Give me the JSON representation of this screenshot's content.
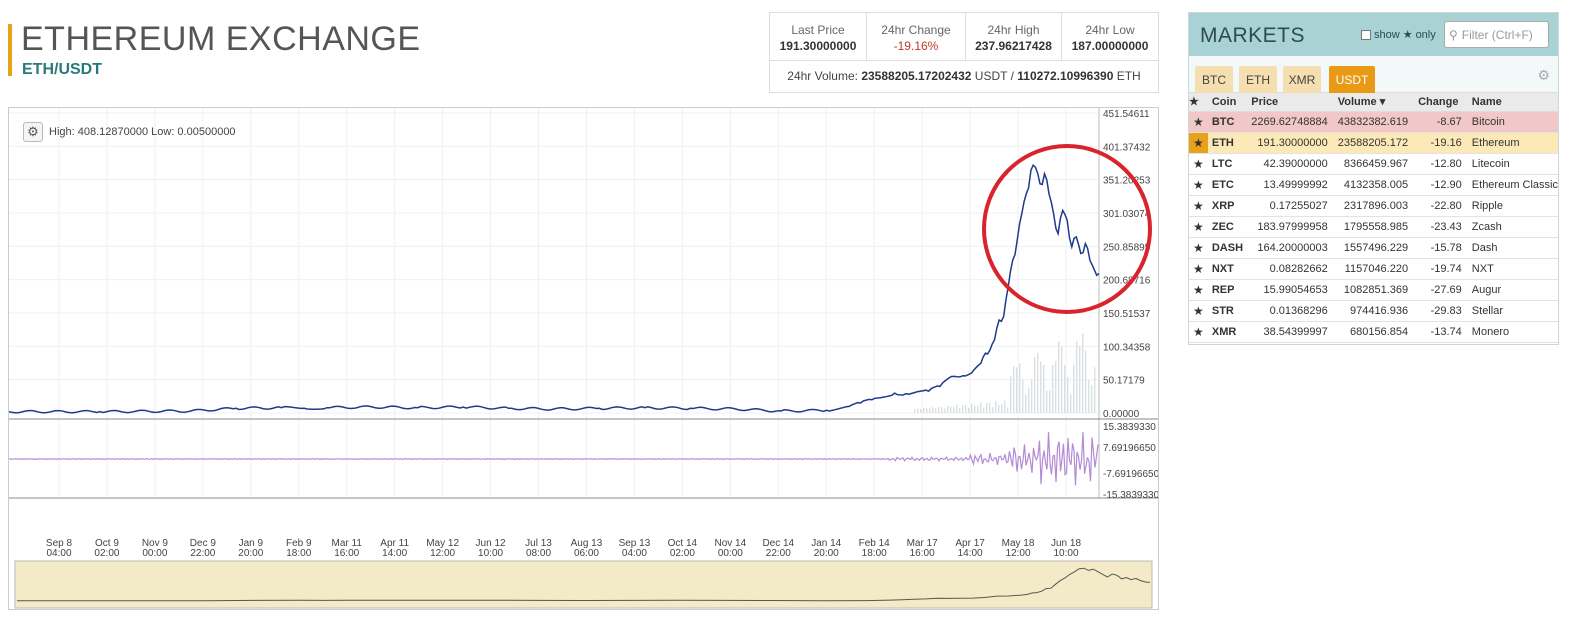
{
  "header": {
    "title": "ETHEREUM EXCHANGE",
    "pair": "ETH/USDT"
  },
  "stats": {
    "last_price_label": "Last Price",
    "last_price": "191.30000000",
    "change_label": "24hr Change",
    "change": "-19.16%",
    "high_label": "24hr High",
    "high": "237.96217428",
    "low_label": "24hr Low",
    "low": "187.00000000",
    "volume_label": "24hr Volume:",
    "volume_usdt": "23588205.17202432",
    "usdt_unit": "USDT /",
    "volume_eth": "110272.10996390",
    "eth_unit": "ETH"
  },
  "chart": {
    "high_low": "High: 408.12870000  Low: 0.00500000",
    "price_ticks": [
      "451.54611",
      "401.37432",
      "351.20253",
      "301.03074",
      "250.85895",
      "200.68716",
      "150.51537",
      "100.34358",
      "50.17179",
      "0.00000"
    ],
    "osc_ticks": [
      "15.3839330",
      "7.69196650",
      "-7.69196650",
      "-15.3839330"
    ],
    "x_labels": [
      [
        "Sep 8",
        "04:00"
      ],
      [
        "Oct 9",
        "02:00"
      ],
      [
        "Nov 9",
        "00:00"
      ],
      [
        "Dec 9",
        "22:00"
      ],
      [
        "Jan 9",
        "20:00"
      ],
      [
        "Feb 9",
        "18:00"
      ],
      [
        "Mar 11",
        "16:00"
      ],
      [
        "Apr 11",
        "14:00"
      ],
      [
        "May 12",
        "12:00"
      ],
      [
        "Jun 12",
        "10:00"
      ],
      [
        "Jul 13",
        "08:00"
      ],
      [
        "Aug 13",
        "06:00"
      ],
      [
        "Sep 13",
        "04:00"
      ],
      [
        "Oct 14",
        "02:00"
      ],
      [
        "Nov 14",
        "00:00"
      ],
      [
        "Dec 14",
        "22:00"
      ],
      [
        "Jan 14",
        "20:00"
      ],
      [
        "Feb 14",
        "18:00"
      ],
      [
        "Mar 17",
        "16:00"
      ],
      [
        "Apr 17",
        "14:00"
      ],
      [
        "May 18",
        "12:00"
      ],
      [
        "Jun 18",
        "10:00"
      ]
    ],
    "colors": {
      "price_line": "#1f3a8a",
      "oscillator": "#b48ad6",
      "annotation_circle": "#d9232d",
      "navigator_fill": "#f3ebc7"
    },
    "price_series": [
      [
        0,
        2
      ],
      [
        4,
        2
      ],
      [
        8,
        3
      ],
      [
        10,
        7
      ],
      [
        12,
        8
      ],
      [
        13,
        7
      ],
      [
        14,
        8
      ],
      [
        16,
        9
      ],
      [
        18,
        8
      ],
      [
        20,
        9
      ],
      [
        22,
        7
      ],
      [
        24,
        6
      ],
      [
        26,
        7
      ],
      [
        28,
        8
      ],
      [
        30,
        7
      ],
      [
        32,
        6
      ],
      [
        34,
        3
      ],
      [
        36,
        4
      ],
      [
        37,
        10
      ],
      [
        37.5,
        15
      ],
      [
        38,
        20
      ],
      [
        38.5,
        24
      ],
      [
        39,
        30
      ],
      [
        39.5,
        29
      ],
      [
        40,
        32
      ],
      [
        40.5,
        33
      ],
      [
        41,
        40
      ],
      [
        41.5,
        55
      ],
      [
        42,
        56
      ],
      [
        42.5,
        65
      ],
      [
        42.8,
        75
      ],
      [
        43,
        90
      ],
      [
        43.2,
        95
      ],
      [
        43.4,
        110
      ],
      [
        43.6,
        140
      ],
      [
        43.8,
        145
      ],
      [
        44,
        190
      ],
      [
        44.2,
        230
      ],
      [
        44.4,
        260
      ],
      [
        44.6,
        300
      ],
      [
        44.8,
        330
      ],
      [
        45,
        365
      ],
      [
        45.2,
        370
      ],
      [
        45.4,
        345
      ],
      [
        45.6,
        360
      ],
      [
        45.8,
        330
      ],
      [
        46,
        300
      ],
      [
        46.2,
        270
      ],
      [
        46.4,
        305
      ],
      [
        46.6,
        290
      ],
      [
        46.8,
        250
      ],
      [
        47,
        265
      ],
      [
        47.2,
        240
      ],
      [
        47.4,
        255
      ],
      [
        47.6,
        230
      ],
      [
        47.8,
        215
      ],
      [
        48,
        210
      ]
    ]
  },
  "markets": {
    "title": "MARKETS",
    "show_only": "show",
    "only": "only",
    "filter_placeholder": "Filter (Ctrl+F)",
    "tabs": [
      "BTC",
      "ETH",
      "XMR",
      "USDT"
    ],
    "active_tab": "USDT",
    "columns": [
      "Coin",
      "Price",
      "Volume",
      "Change",
      "Name"
    ],
    "rows": [
      {
        "coin": "BTC",
        "price": "2269.62748884",
        "volume": "43832382.619",
        "change": "-8.67",
        "name": "Bitcoin"
      },
      {
        "coin": "ETH",
        "price": "191.30000000",
        "volume": "23588205.172",
        "change": "-19.16",
        "name": "Ethereum"
      },
      {
        "coin": "LTC",
        "price": "42.39000000",
        "volume": "8366459.967",
        "change": "-12.80",
        "name": "Litecoin"
      },
      {
        "coin": "ETC",
        "price": "13.49999992",
        "volume": "4132358.005",
        "change": "-12.90",
        "name": "Ethereum Classic"
      },
      {
        "coin": "XRP",
        "price": "0.17255027",
        "volume": "2317896.003",
        "change": "-22.80",
        "name": "Ripple"
      },
      {
        "coin": "ZEC",
        "price": "183.97999958",
        "volume": "1795558.985",
        "change": "-23.43",
        "name": "Zcash"
      },
      {
        "coin": "DASH",
        "price": "164.20000003",
        "volume": "1557496.229",
        "change": "-15.78",
        "name": "Dash"
      },
      {
        "coin": "NXT",
        "price": "0.08282662",
        "volume": "1157046.220",
        "change": "-19.74",
        "name": "NXT"
      },
      {
        "coin": "REP",
        "price": "15.99054653",
        "volume": "1082851.369",
        "change": "-27.69",
        "name": "Augur"
      },
      {
        "coin": "STR",
        "price": "0.01368296",
        "volume": "974416.936",
        "change": "-29.83",
        "name": "Stellar"
      },
      {
        "coin": "XMR",
        "price": "38.54399997",
        "volume": "680156.854",
        "change": "-13.74",
        "name": "Monero"
      }
    ]
  }
}
